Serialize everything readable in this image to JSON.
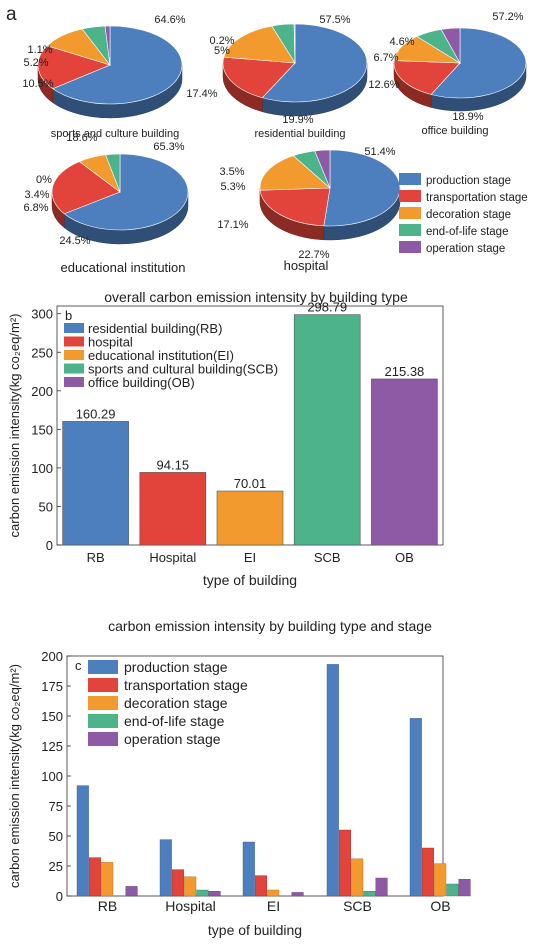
{
  "panel_a": {
    "letter": "a",
    "legend": [
      {
        "label": "production stage",
        "color": "#4d7fbf"
      },
      {
        "label": "transportation stage",
        "color": "#e2433a"
      },
      {
        "label": "decoration stage",
        "color": "#f29a2e"
      },
      {
        "label": "end-of-life stage",
        "color": "#4db38a"
      },
      {
        "label": "operation stage",
        "color": "#8f5aa5"
      }
    ]
  },
  "panel_b": {
    "letter": "b",
    "title": "overall carbon emission intensity by building type",
    "xlabel": "type of building",
    "legend": [
      {
        "label": "residential building(RB)",
        "color": "#4d7fbf"
      },
      {
        "label": "hospital",
        "color": "#e2433a"
      },
      {
        "label": "educational institution(EI)",
        "color": "#f29a2e"
      },
      {
        "label": "sports and cultural building(SCB)",
        "color": "#4db38a"
      },
      {
        "label": "office building(OB)",
        "color": "#8f5aa5"
      }
    ]
  },
  "panel_c": {
    "letter": "c",
    "title": "carbon emission intensity by building type and stage",
    "xlabel": "type of building"
  },
  "chart_data": [
    {
      "type": "pie",
      "title": "sports and culture building",
      "slices": [
        {
          "name": "production stage",
          "value": 64.6,
          "label": "64.6%",
          "color": "#4d7fbf"
        },
        {
          "name": "transportation stage",
          "value": 18.6,
          "label": "18.6%",
          "color": "#e2433a"
        },
        {
          "name": "decoration stage",
          "value": 10.5,
          "label": "10.5%",
          "color": "#f29a2e"
        },
        {
          "name": "end-of-life stage",
          "value": 5.2,
          "label": "5.2%",
          "color": "#4db38a"
        },
        {
          "name": "operation stage",
          "value": 1.1,
          "label": "1.1%",
          "color": "#8f5aa5"
        }
      ]
    },
    {
      "type": "pie",
      "title": "residential building",
      "slices": [
        {
          "name": "production stage",
          "value": 57.5,
          "label": "57.5%",
          "color": "#4d7fbf"
        },
        {
          "name": "transportation stage",
          "value": 19.9,
          "label": "19.9%",
          "color": "#e2433a"
        },
        {
          "name": "decoration stage",
          "value": 17.4,
          "label": "17.4%",
          "color": "#f29a2e"
        },
        {
          "name": "end-of-life stage",
          "value": 5,
          "label": "5%",
          "color": "#4db38a"
        },
        {
          "name": "operation stage",
          "value": 0.2,
          "label": "0.2%",
          "color": "#8f5aa5"
        }
      ]
    },
    {
      "type": "pie",
      "title": "office building",
      "slices": [
        {
          "name": "production stage",
          "value": 57.2,
          "label": "57.2%",
          "color": "#4d7fbf"
        },
        {
          "name": "transportation stage",
          "value": 18.9,
          "label": "18.9%",
          "color": "#e2433a"
        },
        {
          "name": "decoration stage",
          "value": 12.6,
          "label": "12.6%",
          "color": "#f29a2e"
        },
        {
          "name": "end-of-life stage",
          "value": 6.7,
          "label": "6.7%",
          "color": "#4db38a"
        },
        {
          "name": "operation stage",
          "value": 4.6,
          "label": "4.6%",
          "color": "#8f5aa5"
        }
      ]
    },
    {
      "type": "pie",
      "title": "educational institution",
      "slices": [
        {
          "name": "production stage",
          "value": 65.3,
          "label": "65.3%",
          "color": "#4d7fbf"
        },
        {
          "name": "transportation stage",
          "value": 24.5,
          "label": "24.5%",
          "color": "#e2433a"
        },
        {
          "name": "decoration stage",
          "value": 6.8,
          "label": "6.8%",
          "color": "#f29a2e"
        },
        {
          "name": "end-of-life stage",
          "value": 3.4,
          "label": "3.4%",
          "color": "#4db38a"
        },
        {
          "name": "operation stage",
          "value": 0,
          "label": "0%",
          "color": "#8f5aa5"
        }
      ]
    },
    {
      "type": "pie",
      "title": "hospital",
      "slices": [
        {
          "name": "production stage",
          "value": 51.4,
          "label": "51.4%",
          "color": "#4d7fbf"
        },
        {
          "name": "transportation stage",
          "value": 22.7,
          "label": "22.7%",
          "color": "#e2433a"
        },
        {
          "name": "decoration stage",
          "value": 17.1,
          "label": "17.1%",
          "color": "#f29a2e"
        },
        {
          "name": "end-of-life stage",
          "value": 5.3,
          "label": "5.3%",
          "color": "#4db38a"
        },
        {
          "name": "operation stage",
          "value": 3.5,
          "label": "3.5%",
          "color": "#8f5aa5"
        }
      ]
    },
    {
      "type": "bar",
      "title": "overall carbon emission intensity by building type",
      "categories": [
        "RB",
        "Hospital",
        "EI",
        "SCB",
        "OB"
      ],
      "values": [
        160.29,
        94.15,
        70.01,
        298.79,
        215.38
      ],
      "labels": [
        "160.29",
        "94.15",
        "70.01",
        "298.79",
        "215.38"
      ],
      "colors": [
        "#4d7fbf",
        "#e2433a",
        "#f29a2e",
        "#4db38a",
        "#8f5aa5"
      ],
      "xlabel": "type of building",
      "ylabel": "carbon emission intensity(kg co₂eq/m²)",
      "ylim": [
        0,
        310
      ],
      "yticks": [
        0,
        50,
        100,
        150,
        200,
        250,
        300
      ]
    },
    {
      "type": "bar",
      "title": "carbon emission intensity by building type and stage",
      "categories": [
        "RB",
        "Hospital",
        "EI",
        "SCB",
        "OB"
      ],
      "series": [
        {
          "name": "production stage",
          "color": "#4d7fbf",
          "values": [
            92,
            47,
            45,
            193,
            148
          ]
        },
        {
          "name": "transportation stage",
          "color": "#e2433a",
          "values": [
            32,
            22,
            17,
            55,
            40
          ]
        },
        {
          "name": "decoration stage",
          "color": "#f29a2e",
          "values": [
            28,
            16,
            5,
            31,
            27
          ]
        },
        {
          "name": "end-of-life stage",
          "color": "#4db38a",
          "values": [
            0,
            5,
            0,
            4,
            10
          ]
        },
        {
          "name": "operation stage",
          "color": "#8f5aa5",
          "values": [
            8,
            4,
            3,
            15,
            14
          ]
        }
      ],
      "xlabel": "type of building",
      "ylabel": "carbon emission intensity(kg co₂eq/m²)",
      "ylim": [
        0,
        200
      ],
      "yticks": [
        0,
        25,
        50,
        75,
        100,
        125,
        150,
        175,
        200
      ]
    }
  ]
}
